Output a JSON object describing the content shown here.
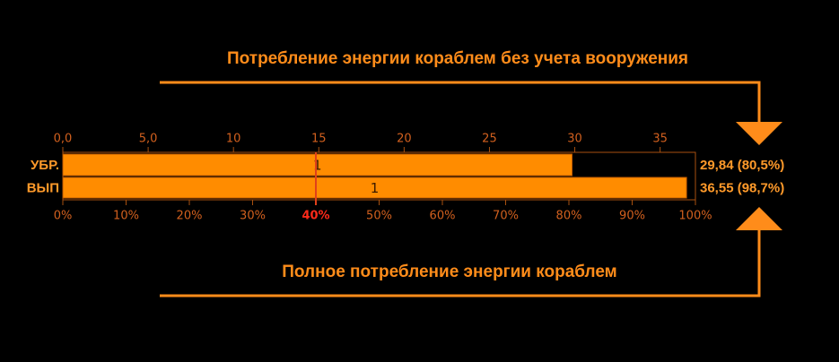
{
  "chart_data": {
    "type": "bar",
    "orientation": "horizontal",
    "annotations": [
      "Потребление энергии кораблем без учета вооружения",
      "Полное потребление энергии кораблем"
    ],
    "categories": [
      "УБР.",
      "ВЫП"
    ],
    "values": [
      29.84,
      36.55
    ],
    "value_labels": [
      "29,84 (80,5%)",
      "36,55 (98,7%)"
    ],
    "bar_labels": [
      "1",
      "1"
    ],
    "color": "#ff8c00",
    "xlim": [
      0,
      37.07
    ],
    "xticks": [
      {
        "value": 0,
        "label": "0,0"
      },
      {
        "value": 5,
        "label": "5,0"
      },
      10,
      15,
      20,
      25,
      30,
      35
    ],
    "x2lim": [
      0,
      100
    ],
    "x2ticks": [
      {
        "value": 0,
        "label": "0%"
      },
      {
        "value": 10,
        "label": "10%"
      },
      {
        "value": 20,
        "label": "20%"
      },
      {
        "value": 30,
        "label": "30%"
      },
      {
        "value": 40,
        "label": "40%",
        "highlight": true
      },
      {
        "value": 50,
        "label": "50%"
      },
      {
        "value": 60,
        "label": "60%"
      },
      {
        "value": 70,
        "label": "70%"
      },
      {
        "value": 80,
        "label": "80%"
      },
      {
        "value": 90,
        "label": "90%"
      },
      {
        "value": 100,
        "label": "100%"
      }
    ]
  }
}
